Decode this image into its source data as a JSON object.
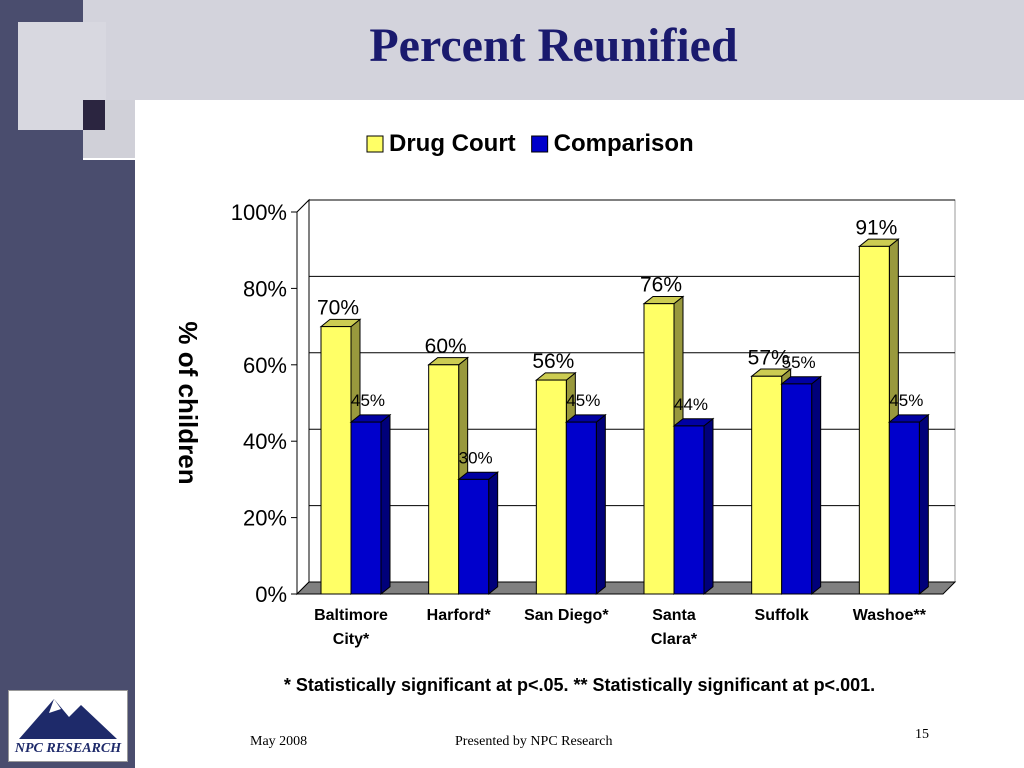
{
  "slide": {
    "title": "Percent Reunified",
    "footnote": "* Statistically significant at p<.05.  ** Statistically significant at p<.001.",
    "footer_date": "May 2008",
    "footer_presenter": "Presented by NPC Research",
    "page_number": "15",
    "logo_text": "NPC RESEARCH"
  },
  "colors": {
    "title": "#1a1a6e",
    "drug_court": "#ffff66",
    "comparison": "#0000cc"
  },
  "chart_data": {
    "type": "bar",
    "ylabel": "% of children",
    "ylim": [
      0,
      100
    ],
    "y_ticks": [
      "0%",
      "20%",
      "40%",
      "60%",
      "80%",
      "100%"
    ],
    "grid": true,
    "legend_position": "top",
    "categories": [
      [
        "Baltimore",
        "City*"
      ],
      [
        "Harford*"
      ],
      [
        "San Diego*"
      ],
      [
        "Santa",
        "Clara*"
      ],
      [
        "Suffolk"
      ],
      [
        "Washoe**"
      ]
    ],
    "series": [
      {
        "name": "Drug Court",
        "values": [
          70,
          60,
          56,
          76,
          57,
          91
        ],
        "labels": [
          "70%",
          "60%",
          "56%",
          "76%",
          "57%",
          "91%"
        ]
      },
      {
        "name": "Comparison",
        "values": [
          45,
          30,
          45,
          44,
          55,
          45
        ],
        "labels": [
          "45%",
          "30%",
          "45%",
          "44%",
          "55%",
          "45%"
        ]
      }
    ]
  }
}
